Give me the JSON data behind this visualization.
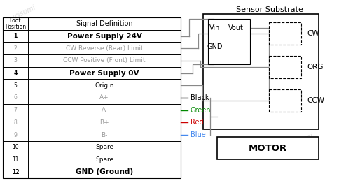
{
  "bg_color": "#ffffff",
  "rows": [
    {
      "foot": "Foot\nPosition",
      "signal": "Signal Definition",
      "bold": false,
      "gray": false,
      "header": true
    },
    {
      "foot": "1",
      "signal": "Power Supply 24V",
      "bold": true,
      "gray": false,
      "header": false
    },
    {
      "foot": "2",
      "signal": "CW Reverse (Rear) Limit",
      "bold": false,
      "gray": true,
      "header": false
    },
    {
      "foot": "3",
      "signal": "CCW Positive (Front) Limit",
      "bold": false,
      "gray": true,
      "header": false
    },
    {
      "foot": "4",
      "signal": "Power Supply 0V",
      "bold": true,
      "gray": false,
      "header": false
    },
    {
      "foot": "5",
      "signal": "Origin",
      "bold": false,
      "gray": false,
      "header": false
    },
    {
      "foot": "6",
      "signal": "A+",
      "bold": false,
      "gray": true,
      "header": false
    },
    {
      "foot": "7",
      "signal": "A-",
      "bold": false,
      "gray": true,
      "header": false
    },
    {
      "foot": "8",
      "signal": "B+",
      "bold": false,
      "gray": true,
      "header": false
    },
    {
      "foot": "9",
      "signal": "B-",
      "bold": false,
      "gray": true,
      "header": false
    },
    {
      "foot": "10",
      "signal": "Spare",
      "bold": false,
      "gray": false,
      "header": false
    },
    {
      "foot": "11",
      "signal": "Spare",
      "bold": false,
      "gray": false,
      "header": false
    },
    {
      "foot": "12",
      "signal": "GND (Ground)",
      "bold": true,
      "gray": false,
      "header": false
    }
  ],
  "wire_colors": [
    {
      "label": "Black",
      "color": "#000000"
    },
    {
      "label": "Green",
      "color": "#008800"
    },
    {
      "label": "Red",
      "color": "#cc0000"
    },
    {
      "label": "Blue",
      "color": "#4488ee"
    }
  ],
  "sensor_substrate_label": "Sensor Substrate",
  "motor_label": "MOTOR",
  "vin_label": "Vin",
  "vout_label": "Vout",
  "gnd_label": "GND",
  "cw_label": "CW",
  "org_label": "ORG",
  "ccw_label": "CCW",
  "wire_line_color": "#888888"
}
